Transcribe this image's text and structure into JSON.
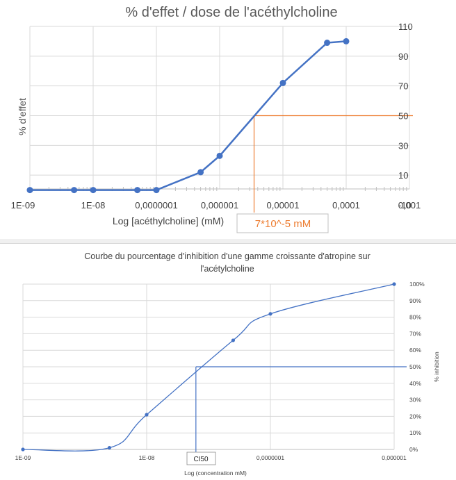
{
  "chart_data": [
    {
      "type": "line",
      "title": "% d'effet / dose de l'acéthylcholine",
      "xlabel": "Log [acéthylcholine] (mM)",
      "ylabel": "% d'effet",
      "x_scale": "log",
      "xlim": [
        1e-09,
        0.001
      ],
      "ylim": [
        -10,
        110
      ],
      "x_tick_labels": [
        "1E-09",
        "1E-08",
        "0,0000001",
        "0,000001",
        "0,00001",
        "0,0001",
        "0,001"
      ],
      "y_tick_labels": [
        "-10",
        "10",
        "30",
        "50",
        "70",
        "90",
        "110"
      ],
      "y_ticks": [
        -10,
        10,
        30,
        50,
        70,
        90,
        110
      ],
      "y_axis_side": "right",
      "grid": true,
      "series": [
        {
          "x": [
            1e-09,
            5e-09,
            1e-08,
            5e-08,
            1e-07,
            5e-07,
            1e-06,
            1e-05,
            5e-05,
            0.0001
          ],
          "y": [
            0,
            0,
            0,
            0,
            0,
            12,
            23,
            72,
            99,
            100
          ],
          "color": "#4472C4"
        }
      ],
      "annotation": {
        "text": "7*10^-5 mM",
        "x": 3.5e-06,
        "y": 50,
        "color": "#ED7D31"
      }
    },
    {
      "type": "line",
      "title": "Courbe du pourcentage d'inhibition d'une gamme croissante d'atropine sur l'acétylcholine",
      "title_lines": [
        "Courbe du pourcentage d'inhibition d'une gamme croissante d'atropine sur",
        "l'acétylcholine"
      ],
      "xlabel": "Log (concentration mM)",
      "ylabel": "% inhibition",
      "x_scale": "log",
      "xlim": [
        1e-09,
        1e-06
      ],
      "ylim": [
        0,
        100
      ],
      "x_tick_labels": [
        "1E-09",
        "1E-08",
        "0,0000001",
        "0,000001"
      ],
      "y_tick_labels": [
        "0%",
        "10%",
        "20%",
        "30%",
        "40%",
        "50%",
        "60%",
        "70%",
        "80%",
        "90%",
        "100%"
      ],
      "y_axis_side": "right",
      "grid": true,
      "series": [
        {
          "x": [
            1e-09,
            5e-09,
            1e-08,
            5e-08,
            1e-07,
            1e-06
          ],
          "y": [
            0,
            1,
            21,
            66,
            82,
            100
          ],
          "color": "#4472C4"
        }
      ],
      "annotation": {
        "text": "CI50",
        "x": 2.5e-08,
        "y": 50,
        "color": "#4472C4"
      }
    }
  ]
}
